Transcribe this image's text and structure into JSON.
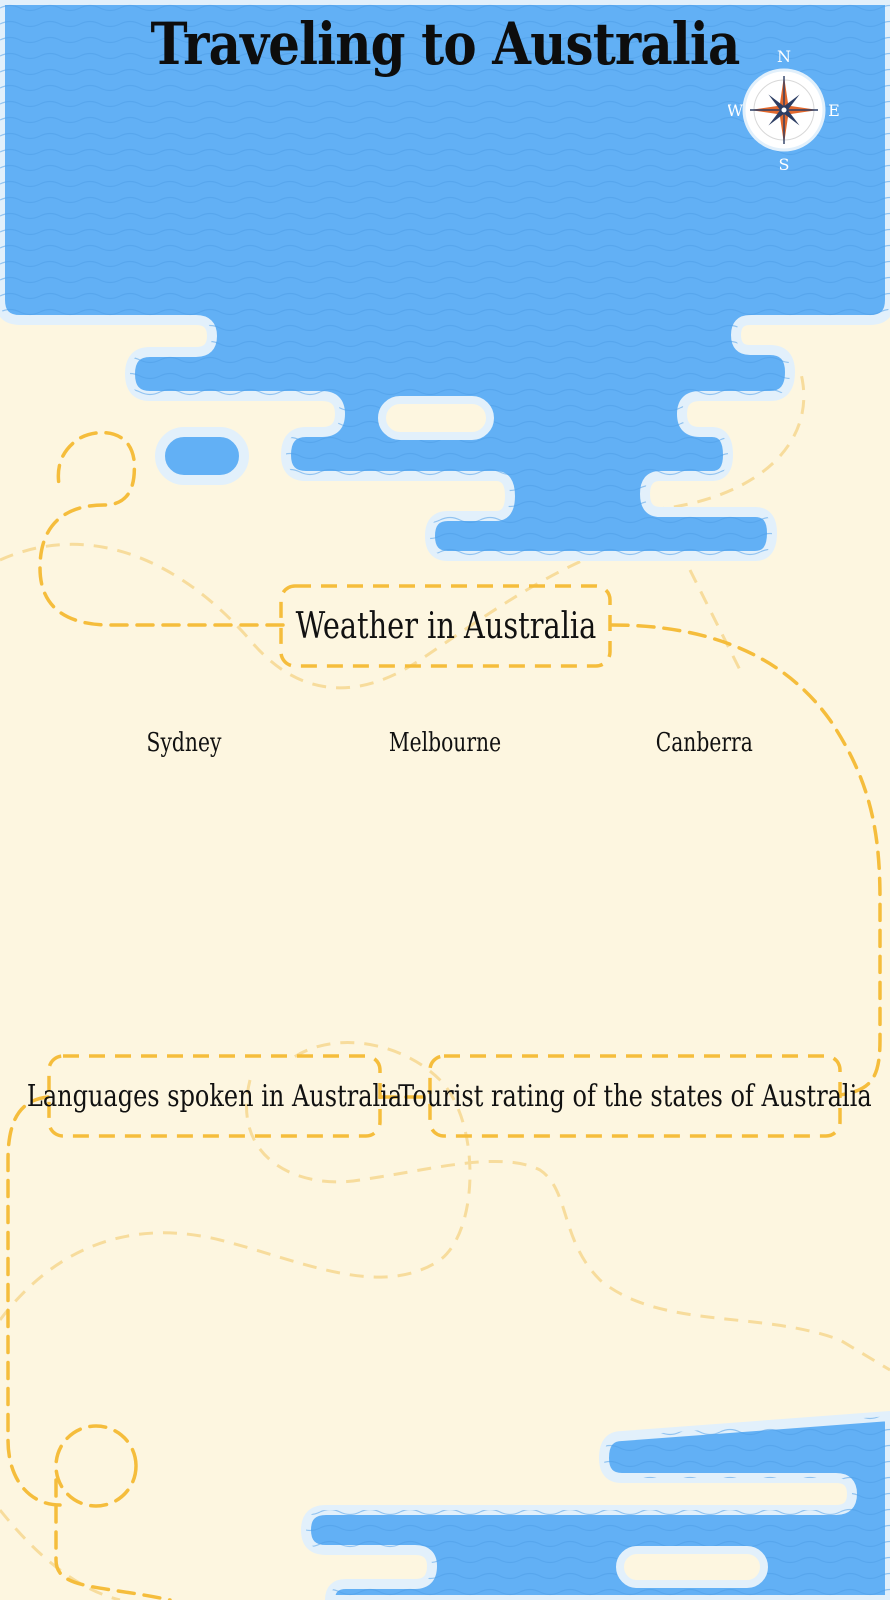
{
  "header": {
    "title": "Traveling to Australia"
  },
  "compass": {
    "north": "N",
    "south": "S",
    "east": "E",
    "west": "W"
  },
  "sections": {
    "weather": {
      "title": "Weather in Australia",
      "cities": [
        "Sydney",
        "Melbourne",
        "Canberra"
      ]
    },
    "languages": {
      "title": "Languages spoken in Australia"
    },
    "tourist": {
      "title": "Tourist rating of the states of Australia"
    }
  },
  "colors": {
    "background": "#fdf6e0",
    "water": "#62b0f5",
    "water_outline": "#e2f0fb",
    "route": "#f5bd3c",
    "route_faded": "#f7dc9c",
    "compass_orange": "#e2692e",
    "compass_navy": "#2c3d63"
  }
}
